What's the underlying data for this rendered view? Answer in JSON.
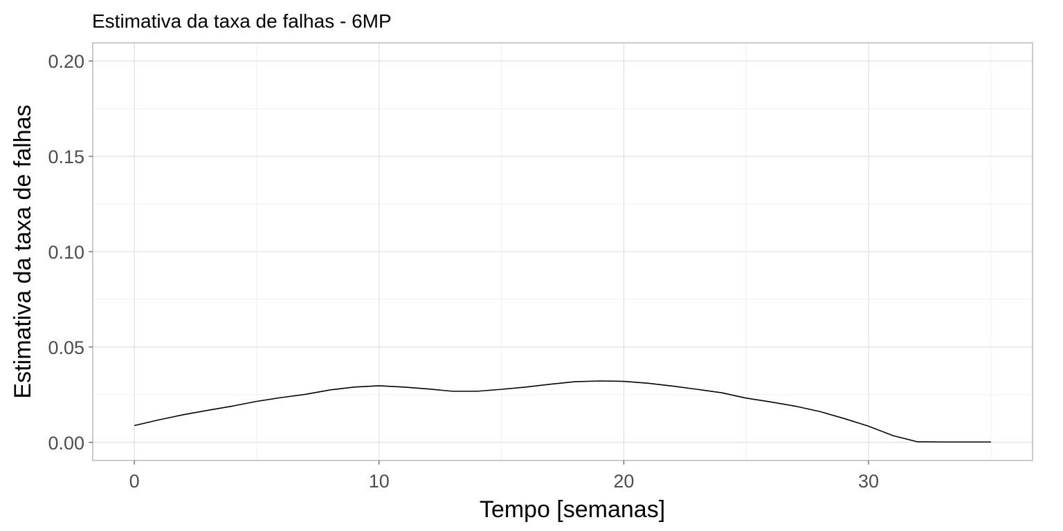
{
  "chart_data": {
    "type": "line",
    "title": "Estimativa da taxa de falhas - 6MP",
    "xlabel": "Tempo [semanas]",
    "ylabel": "Estimativa da taxa de falhas",
    "xlim": [
      -1.7,
      36.7
    ],
    "ylim": [
      -0.0095,
      0.2095
    ],
    "x_ticks": [
      0,
      10,
      20,
      30
    ],
    "x_tick_labels": [
      "0",
      "10",
      "20",
      "30"
    ],
    "y_ticks": [
      0,
      0.05,
      0.1,
      0.15,
      0.2
    ],
    "y_tick_labels": [
      "0.00",
      "0.05",
      "0.10",
      "0.15",
      "0.20"
    ],
    "grid": true,
    "series": [
      {
        "x": [
          0,
          1,
          2,
          3,
          4,
          5,
          6,
          7,
          8,
          9,
          10,
          11,
          12,
          13,
          14,
          15,
          16,
          17,
          18,
          19,
          20,
          21,
          22,
          23,
          24,
          25,
          26,
          27,
          28,
          29,
          30,
          31,
          32,
          33,
          34,
          35
        ],
        "y": [
          0.0088,
          0.0118,
          0.0145,
          0.0168,
          0.019,
          0.0215,
          0.0235,
          0.0252,
          0.0275,
          0.029,
          0.0297,
          0.029,
          0.028,
          0.0268,
          0.0268,
          0.0278,
          0.029,
          0.0305,
          0.0318,
          0.0322,
          0.032,
          0.031,
          0.0295,
          0.0278,
          0.026,
          0.0232,
          0.0212,
          0.019,
          0.0162,
          0.0125,
          0.0085,
          0.0035,
          0.0003,
          0.0002,
          0.0002,
          0.0002
        ]
      }
    ]
  }
}
